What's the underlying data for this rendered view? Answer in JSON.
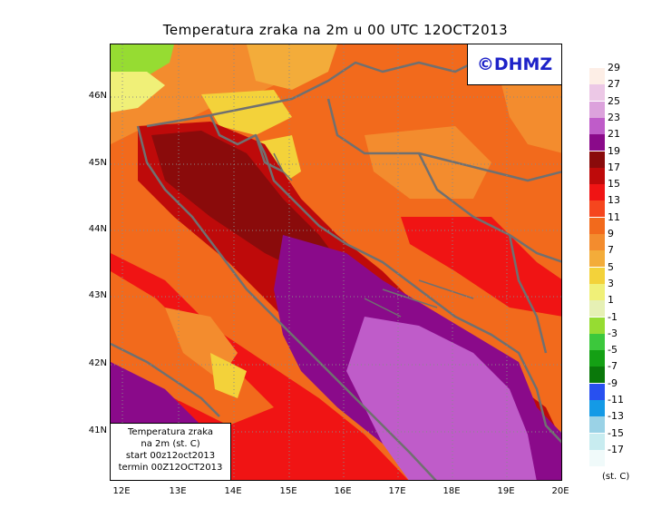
{
  "title": "Temperatura zraka na 2m u 00 UTC 12OCT2013",
  "logo": "©DHMZ",
  "infobox": {
    "line1": "Temperatura zraka",
    "line2": "na 2m (st. C)",
    "line3": "start 00z12oct2013",
    "line4": "termin 00Z12OCT2013"
  },
  "lat_labels": [
    {
      "label": "46N",
      "value": 46
    },
    {
      "label": "45N",
      "value": 45
    },
    {
      "label": "44N",
      "value": 44
    },
    {
      "label": "43N",
      "value": 43
    },
    {
      "label": "42N",
      "value": 42
    },
    {
      "label": "41N",
      "value": 41
    }
  ],
  "lon_labels": [
    {
      "label": "12E",
      "value": 12
    },
    {
      "label": "13E",
      "value": 13
    },
    {
      "label": "14E",
      "value": 14
    },
    {
      "label": "15E",
      "value": 15
    },
    {
      "label": "16E",
      "value": 16
    },
    {
      "label": "17E",
      "value": 17
    },
    {
      "label": "18E",
      "value": 18
    },
    {
      "label": "19E",
      "value": 19
    },
    {
      "label": "20E",
      "value": 20
    }
  ],
  "legend": {
    "unit": "(st. C)",
    "levels": [
      {
        "label": "29",
        "color": "#fdeee6"
      },
      {
        "label": "27",
        "color": "#ecc8e6"
      },
      {
        "label": "25",
        "color": "#dca2dc"
      },
      {
        "label": "23",
        "color": "#bf5cc9"
      },
      {
        "label": "21",
        "color": "#8a0a8a"
      },
      {
        "label": "19",
        "color": "#8a0b0b"
      },
      {
        "label": "17",
        "color": "#be0a0a"
      },
      {
        "label": "15",
        "color": "#f01414"
      },
      {
        "label": "13",
        "color": "#f5461e"
      },
      {
        "label": "11",
        "color": "#f26a1c"
      },
      {
        "label": "9",
        "color": "#f38c2e"
      },
      {
        "label": "7",
        "color": "#f3ac3a"
      },
      {
        "label": "5",
        "color": "#f3d23a"
      },
      {
        "label": "3",
        "color": "#f0f078"
      },
      {
        "label": "1",
        "color": "#e6f0b4"
      },
      {
        "label": "-1",
        "color": "#96dc32"
      },
      {
        "label": "-3",
        "color": "#3cc83c"
      },
      {
        "label": "-5",
        "color": "#14a014"
      },
      {
        "label": "-7",
        "color": "#0a780a"
      },
      {
        "label": "-9",
        "color": "#2850f0"
      },
      {
        "label": "-11",
        "color": "#149ae6"
      },
      {
        "label": "-13",
        "color": "#9ad2e6"
      },
      {
        "label": "-15",
        "color": "#c8ecf0"
      },
      {
        "label": "-17",
        "color": "#f0fafa"
      }
    ]
  }
}
